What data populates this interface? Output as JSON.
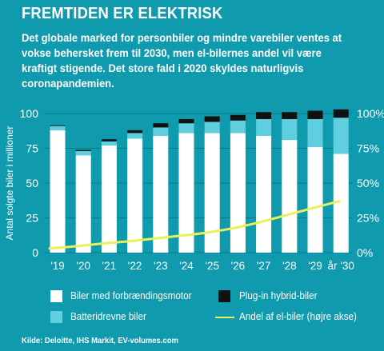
{
  "title": "FREMTIDEN ER ELEKTRISK",
  "subtitle": "Det globale marked for personbiler og mindre varebiler ventes at vokse behersket frem til 2030, men el-bilernes andel vil være kraftigt stigende. Det store fald i 2020 skyldes naturligvis coronapandemien.",
  "source": "Kilde: Deloitte, IHS Markit, EV-volumes.com",
  "legend": [
    {
      "label": "Biler med forbrændingsmotor",
      "color": "#ffffff",
      "kind": "box"
    },
    {
      "label": "Plug-in hybrid-biler",
      "color": "#111111",
      "kind": "box"
    },
    {
      "label": "Batteridrevne biler",
      "color": "#5fcfe0",
      "kind": "box"
    },
    {
      "label": "Andel af el-biler (højre akse)",
      "color": "#e9f05a",
      "kind": "line"
    }
  ],
  "chart_data": {
    "type": "bar",
    "stacked": true,
    "categories": [
      "'19",
      "'20",
      "'21",
      "'22",
      "'23",
      "'24",
      "'25",
      "'26",
      "'27",
      "'28",
      "'29",
      "år '30"
    ],
    "ylabel": "Antal solgte biler i millioner",
    "ylim": [
      0,
      100
    ],
    "yticks": [
      0,
      25,
      50,
      75,
      100
    ],
    "y2lim": [
      0,
      100
    ],
    "y2ticks": [
      "0%",
      "25%",
      "50%",
      "75%",
      "100%"
    ],
    "series": [
      {
        "name": "Biler med forbrændingsmotor",
        "color": "#ffffff",
        "values": [
          88,
          70,
          77,
          82,
          84,
          86,
          86,
          86,
          84,
          81,
          76,
          71
        ]
      },
      {
        "name": "Batteridrevne biler",
        "color": "#5fcfe0",
        "values": [
          3,
          3,
          3,
          4,
          6,
          7,
          8,
          9,
          12,
          15,
          20,
          26
        ]
      },
      {
        "name": "Plug-in hybrid-biler",
        "color": "#111111",
        "values": [
          0.5,
          0.8,
          1.5,
          2,
          3,
          3,
          4,
          4,
          5,
          5,
          6,
          6
        ]
      }
    ],
    "line": {
      "name": "Andel af el-biler (højre akse)",
      "color": "#e9f05a",
      "axis": "right",
      "values": [
        3,
        4.5,
        6.5,
        8,
        10,
        12,
        14,
        17,
        21,
        26,
        31,
        37
      ]
    }
  }
}
